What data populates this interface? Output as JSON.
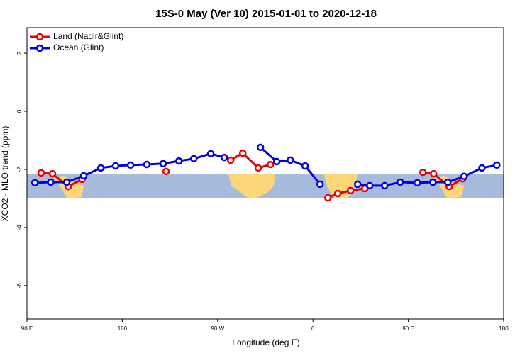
{
  "chart_data": {
    "type": "line",
    "title": "15S-0 May (Ver 10)   2015-01-01 to 2020-12-18",
    "x_label": "Longitude (deg E)",
    "y_label": "XCO2 - MLO trend (ppm)",
    "xlim": [
      90,
      540
    ],
    "xticks": [
      {
        "value": 90,
        "label": "90 E"
      },
      180,
      {
        "value": 270,
        "label": "90 W"
      },
      {
        "value": 360,
        "label": "0"
      },
      {
        "value": 450,
        "label": "90 E"
      },
      {
        "value": 540,
        "label": "180"
      }
    ],
    "ylim": [
      -7.15,
      2.88
    ],
    "yticks": [
      2,
      0,
      -2,
      -4,
      -6
    ],
    "legend": "top-left",
    "series": [
      {
        "name": "Land (Nadir&Glint)",
        "color": "#ee0000",
        "x": [
          103.4,
          114.1,
          128.9,
          142.0,
          null,
          221.3,
          null,
          282.3,
          293.7,
          308.4,
          319.8,
          null,
          374.1,
          383.4,
          395.5,
          408.9,
          null,
          463.8,
          473.9,
          488.6,
          501.4
        ],
        "values": [
          -2.12,
          -2.15,
          -2.59,
          -2.34,
          null,
          -2.07,
          null,
          -1.68,
          -1.44,
          -1.95,
          -1.83,
          null,
          -2.98,
          -2.83,
          -2.73,
          -2.66,
          null,
          -2.1,
          -2.15,
          -2.59,
          -2.32
        ]
      },
      {
        "name": "Ocean (Glint)",
        "color": "#0000ee",
        "x": [
          97.5,
          112.5,
          127.5,
          143.6,
          159.7,
          173.7,
          187.8,
          203.2,
          218.6,
          233.4,
          247.5,
          263.5,
          276.3,
          null,
          310.4,
          325.8,
          338.6,
          352.6,
          366.7,
          null,
          402.2,
          413.6,
          427.7,
          442.4,
          458.5,
          473.2,
          487.3,
          502.7,
          519.5,
          533.5
        ],
        "values": [
          -2.46,
          -2.44,
          -2.44,
          -2.22,
          -1.95,
          -1.88,
          -1.85,
          -1.83,
          -1.8,
          -1.71,
          -1.63,
          -1.46,
          -1.59,
          null,
          -1.24,
          -1.73,
          -1.68,
          -1.88,
          -2.51,
          null,
          -2.51,
          -2.56,
          -2.56,
          -2.44,
          -2.46,
          -2.44,
          -2.44,
          -2.24,
          -1.95,
          -1.85
        ]
      }
    ]
  }
}
